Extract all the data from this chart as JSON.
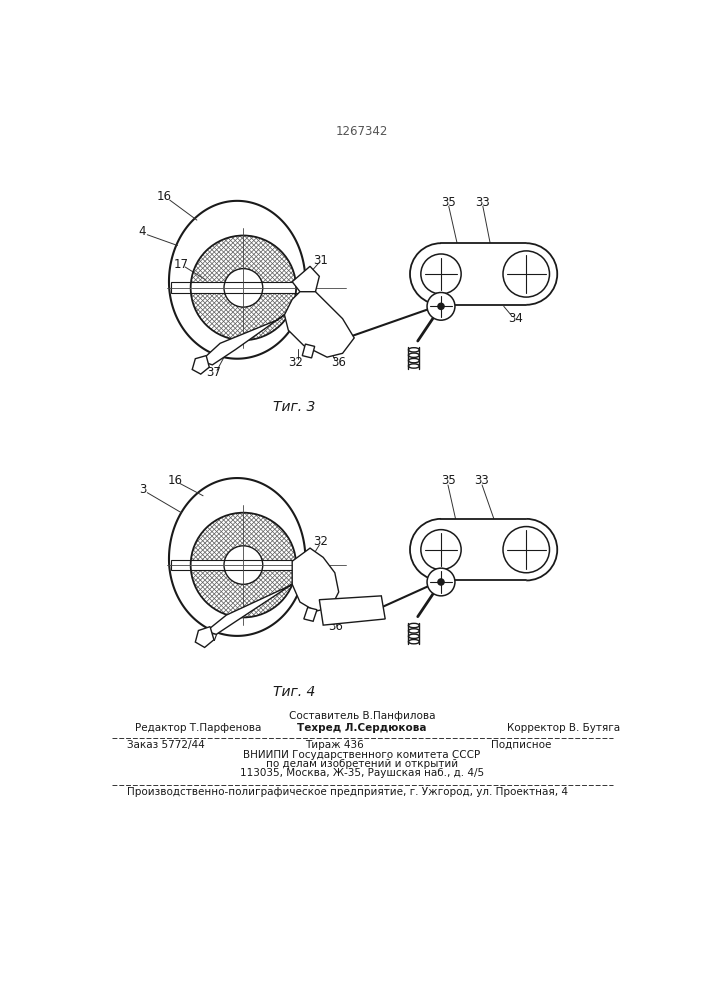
{
  "page_number": "1267342",
  "fig3_label": "Τиг. 3",
  "fig4_label": "Τиг. 4",
  "footer_line1_left": "Редактор Т.Парфенова",
  "footer_line1_center_top": "Составитель В.Панфилова",
  "footer_line1_center": "Техред Л.Сердюкова",
  "footer_line1_right": "Корректор В. Бутяга",
  "footer_line2_left": "Заказ 5772/44",
  "footer_line2_center": "Тираж 436",
  "footer_line2_right": "Подписное",
  "footer_line3": "ВНИИПИ Государственного комитета СССР",
  "footer_line4": "по делам изобретений и открытий",
  "footer_line5": "113035, Москва, Ж-35, Раушская наб., д. 4/5",
  "footer_line6": "Производственно-полиграфическое предприятие, г. Ужгород, ул. Проектная, 4",
  "line_color": "#1a1a1a"
}
